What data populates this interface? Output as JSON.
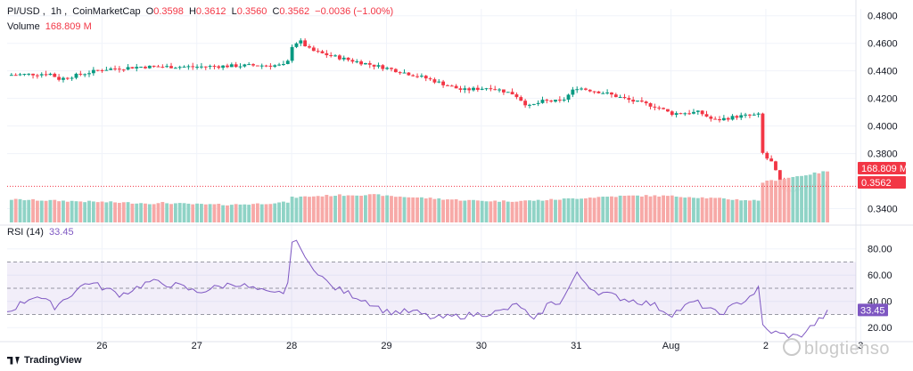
{
  "header": {
    "symbol": "PI/USD",
    "interval": "1h",
    "source": "CoinMarketCap",
    "open_label": "O",
    "open": "0.3598",
    "high_label": "H",
    "high": "0.3612",
    "low_label": "L",
    "low": "0.3560",
    "close_label": "C",
    "close": "0.3562",
    "change": "−0.0036 (−1.00%)",
    "volume_label": "Volume",
    "volume_value": "168.809 M"
  },
  "rsi_header": {
    "label": "RSI (14)",
    "value": "33.45"
  },
  "price_badges": {
    "volume": "168.809 M",
    "price": "0.3562"
  },
  "rsi_badge": "33.45",
  "branding": {
    "logo_text": "TradingView",
    "watermark": "blogtienso"
  },
  "colors": {
    "up": "#089981",
    "down": "#f23645",
    "rsi": "#7e57c2",
    "vol_up": "#8fd3c6",
    "vol_down": "#f7a9a7"
  },
  "chart_data": [
    {
      "type": "candlestick",
      "title": "PI/USD, 1h, CoinMarketCap",
      "ylim": [
        0.33,
        0.485
      ],
      "y_ticks": [
        "0.4800",
        "0.4600",
        "0.4400",
        "0.4200",
        "0.4000",
        "0.3800",
        "0.3400"
      ],
      "x_tick_labels": [
        "26",
        "27",
        "28",
        "29",
        "30",
        "31",
        "Aug",
        "2",
        "3"
      ],
      "x_tick_days": [
        1,
        2,
        3,
        4,
        5,
        6,
        7,
        8,
        9
      ],
      "x_range_days": [
        0,
        8.95
      ],
      "anchors": [
        [
          0.0,
          0.437
        ],
        [
          0.45,
          0.438
        ],
        [
          0.55,
          0.434
        ],
        [
          1.0,
          0.441
        ],
        [
          1.4,
          0.443
        ],
        [
          2.0,
          0.443
        ],
        [
          2.6,
          0.444
        ],
        [
          2.95,
          0.444
        ],
        [
          3.0,
          0.458
        ],
        [
          3.08,
          0.462
        ],
        [
          3.2,
          0.455
        ],
        [
          3.35,
          0.452
        ],
        [
          3.6,
          0.448
        ],
        [
          4.0,
          0.442
        ],
        [
          4.4,
          0.435
        ],
        [
          4.8,
          0.426
        ],
        [
          5.1,
          0.428
        ],
        [
          5.35,
          0.423
        ],
        [
          5.5,
          0.414
        ],
        [
          5.65,
          0.418
        ],
        [
          5.85,
          0.418
        ],
        [
          6.0,
          0.428
        ],
        [
          6.3,
          0.424
        ],
        [
          6.6,
          0.418
        ],
        [
          6.85,
          0.414
        ],
        [
          7.0,
          0.409
        ],
        [
          7.3,
          0.41
        ],
        [
          7.45,
          0.404
        ],
        [
          7.7,
          0.407
        ],
        [
          7.93,
          0.408
        ],
        [
          7.97,
          0.378
        ],
        [
          8.05,
          0.375
        ],
        [
          8.2,
          0.352
        ],
        [
          8.35,
          0.355
        ],
        [
          8.5,
          0.358
        ],
        [
          8.65,
          0.3562
        ]
      ],
      "last": {
        "open": 0.3598,
        "high": 0.3612,
        "low": 0.356,
        "close": 0.3562
      }
    },
    {
      "type": "bar",
      "title": "Volume",
      "last_value": "168.809 M"
    },
    {
      "type": "line",
      "title": "RSI (14)",
      "ylim": [
        10,
        92
      ],
      "y_ticks": [
        "80.00",
        "60.00",
        "40.00",
        "20.00"
      ],
      "band": [
        30,
        70
      ],
      "mid_line": 50,
      "anchors": [
        [
          0.0,
          32
        ],
        [
          0.3,
          45
        ],
        [
          0.5,
          36
        ],
        [
          0.85,
          55
        ],
        [
          1.2,
          45
        ],
        [
          1.5,
          55
        ],
        [
          1.8,
          52
        ],
        [
          2.0,
          47
        ],
        [
          2.4,
          54
        ],
        [
          2.8,
          45
        ],
        [
          2.95,
          48
        ],
        [
          3.0,
          82
        ],
        [
          3.05,
          89
        ],
        [
          3.15,
          70
        ],
        [
          3.25,
          65
        ],
        [
          3.4,
          52
        ],
        [
          3.6,
          46
        ],
        [
          3.8,
          40
        ],
        [
          4.0,
          32
        ],
        [
          4.3,
          32
        ],
        [
          4.5,
          27
        ],
        [
          4.8,
          29
        ],
        [
          5.2,
          32
        ],
        [
          5.4,
          38
        ],
        [
          5.55,
          24
        ],
        [
          5.7,
          38
        ],
        [
          5.85,
          40
        ],
        [
          6.0,
          61
        ],
        [
          6.2,
          48
        ],
        [
          6.5,
          42
        ],
        [
          6.8,
          38
        ],
        [
          7.0,
          30
        ],
        [
          7.25,
          40
        ],
        [
          7.5,
          30
        ],
        [
          7.8,
          42
        ],
        [
          7.93,
          50
        ],
        [
          7.97,
          19
        ],
        [
          8.15,
          15
        ],
        [
          8.35,
          13
        ],
        [
          8.6,
          28
        ],
        [
          8.65,
          33.45
        ]
      ],
      "last_value": 33.45
    }
  ]
}
